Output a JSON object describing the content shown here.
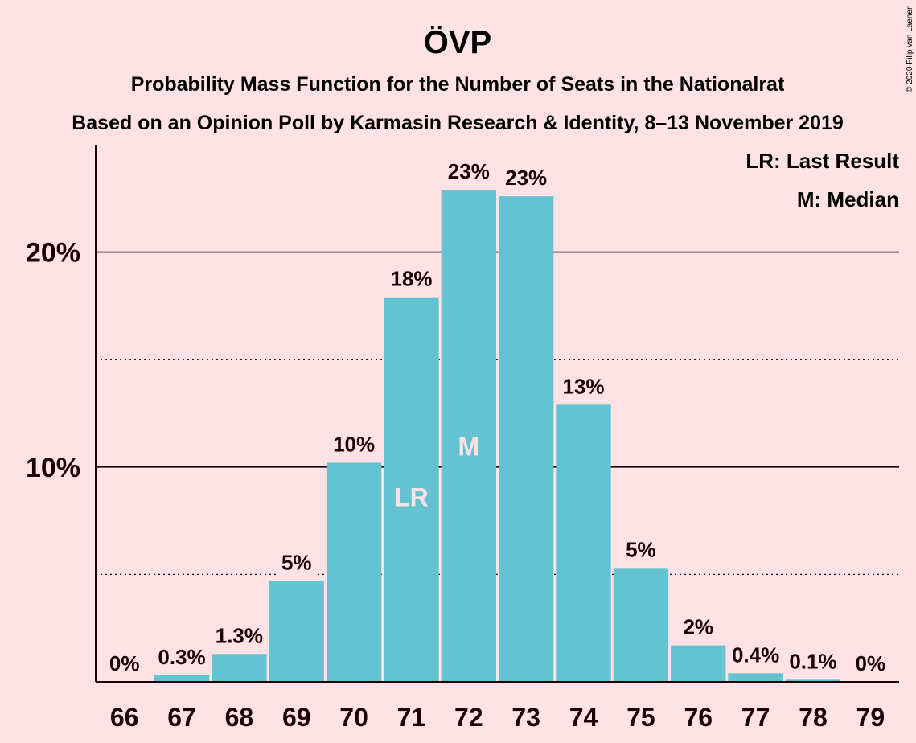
{
  "colors": {
    "background": "#FFE2E6",
    "bar": "#64C3D0",
    "text": "#1a0008",
    "inbar_text": "#FFE2E6"
  },
  "chart_data": {
    "type": "bar",
    "title": "ÖVP",
    "subtitle_1": "Probability Mass Function for the Number of Seats in the Nationalrat",
    "subtitle_2": "Based on an Opinion Poll by Karmasin Research & Identity, 8–13 November 2019",
    "copyright": "© 2020 Filip van Laenen",
    "categories": [
      "66",
      "67",
      "68",
      "69",
      "70",
      "71",
      "72",
      "73",
      "74",
      "75",
      "76",
      "77",
      "78",
      "79"
    ],
    "values": [
      0,
      0.3,
      1.3,
      4.7,
      10.2,
      17.9,
      22.9,
      22.6,
      12.9,
      5.3,
      1.7,
      0.4,
      0.1,
      0
    ],
    "data_labels": [
      "0%",
      "0.3%",
      "1.3%",
      "5%",
      "10%",
      "18%",
      "23%",
      "23%",
      "13%",
      "5%",
      "2%",
      "0.4%",
      "0.1%",
      "0%"
    ],
    "ylim": [
      0,
      25
    ],
    "yticks": [
      {
        "value": 10,
        "label": "10%"
      },
      {
        "value": 20,
        "label": "20%"
      }
    ],
    "minor_gridlines": [
      5,
      15
    ],
    "markers": [
      {
        "category": "71",
        "text": "LR"
      },
      {
        "category": "72",
        "text": "M"
      }
    ],
    "legend": [
      "LR: Last Result",
      "M: Median"
    ],
    "legend_position": "top-right",
    "xlabel": "",
    "ylabel": ""
  }
}
